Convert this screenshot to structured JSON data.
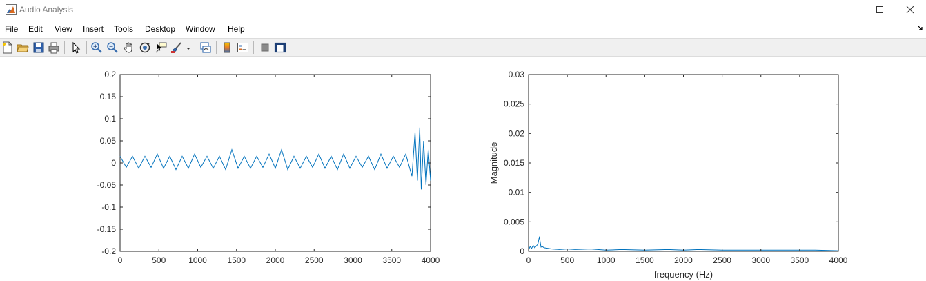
{
  "window": {
    "title": "Audio Analysis",
    "icon": "matlab-figure-icon",
    "controls": [
      "minimize-icon",
      "maximize-icon",
      "close-icon"
    ]
  },
  "menu": {
    "items": [
      "File",
      "Edit",
      "View",
      "Insert",
      "Tools",
      "Desktop",
      "Window",
      "Help"
    ]
  },
  "toolbar": {
    "tools": [
      "new-figure-icon",
      "open-file-icon",
      "save-icon",
      "print-icon",
      "select-pointer-icon",
      "zoom-in-icon",
      "zoom-out-icon",
      "pan-hand-icon",
      "rotate-3d-icon",
      "data-cursor-icon",
      "brush-icon",
      "brush-dropdown-icon",
      "link-plot-icon",
      "colorbar-icon",
      "legend-icon",
      "hide-plot-tools-icon",
      "show-plot-tools-icon"
    ]
  },
  "chart_data": [
    {
      "type": "line",
      "title": "",
      "xlabel": "",
      "ylabel": "",
      "xlim": [
        0,
        4000
      ],
      "ylim": [
        -0.2,
        0.2
      ],
      "xticks": [
        "0",
        "500",
        "1000",
        "1500",
        "2000",
        "2500",
        "3000",
        "3500",
        "4000"
      ],
      "yticks": [
        "0.2",
        "0.15",
        "0.1",
        "0.05",
        "0",
        "-0.05",
        "-0.1",
        "-0.15",
        "-0.2"
      ],
      "grid": false,
      "color": "#0072bd",
      "series": [
        {
          "x": [
            0,
            80,
            160,
            240,
            320,
            400,
            480,
            560,
            640,
            720,
            800,
            880,
            960,
            1040,
            1120,
            1200,
            1280,
            1360,
            1440,
            1520,
            1600,
            1680,
            1760,
            1840,
            1920,
            2000,
            2080,
            2160,
            2240,
            2320,
            2400,
            2480,
            2560,
            2640,
            2720,
            2800,
            2880,
            2960,
            3040,
            3120,
            3200,
            3280,
            3360,
            3440,
            3520,
            3600,
            3680,
            3760,
            3800,
            3830,
            3860,
            3880,
            3910,
            3940,
            3970,
            4000
          ],
          "values": [
            0.015,
            -0.01,
            0.015,
            -0.012,
            0.015,
            -0.01,
            0.02,
            -0.012,
            0.015,
            -0.015,
            0.015,
            -0.012,
            0.02,
            -0.01,
            0.015,
            -0.012,
            0.015,
            -0.015,
            0.03,
            -0.012,
            0.015,
            -0.012,
            0.015,
            -0.01,
            0.02,
            -0.012,
            0.03,
            -0.015,
            0.015,
            -0.012,
            0.015,
            -0.01,
            0.02,
            -0.012,
            0.015,
            -0.015,
            0.02,
            -0.012,
            0.015,
            -0.01,
            0.015,
            -0.015,
            0.02,
            -0.012,
            0.015,
            -0.01,
            0.02,
            -0.03,
            0.07,
            -0.04,
            0.08,
            -0.06,
            0.05,
            -0.05,
            0.03,
            -0.04
          ]
        }
      ]
    },
    {
      "type": "line",
      "title": "",
      "xlabel": "frequency (Hz)",
      "ylabel": "Magnitude",
      "xlim": [
        0,
        4000
      ],
      "ylim": [
        0,
        0.03
      ],
      "xticks": [
        "0",
        "500",
        "1000",
        "1500",
        "2000",
        "2500",
        "3000",
        "3500",
        "4000"
      ],
      "yticks": [
        "0.03",
        "0.025",
        "0.02",
        "0.015",
        "0.01",
        "0.005",
        "0"
      ],
      "grid": false,
      "color": "#0072bd",
      "series": [
        {
          "x": [
            0,
            20,
            40,
            60,
            80,
            100,
            120,
            140,
            160,
            180,
            200,
            250,
            300,
            400,
            500,
            600,
            800,
            1000,
            1200,
            1500,
            1800,
            2000,
            2200,
            2500,
            2800,
            3000,
            3300,
            3500,
            3700,
            4000
          ],
          "values": [
            0.0002,
            0.0008,
            0.0005,
            0.001,
            0.0006,
            0.0009,
            0.0012,
            0.0025,
            0.0007,
            0.0008,
            0.0006,
            0.0005,
            0.0004,
            0.0003,
            0.0004,
            0.0003,
            0.0004,
            0.0002,
            0.0003,
            0.0002,
            0.0003,
            0.0002,
            0.0003,
            0.0002,
            0.0002,
            0.0002,
            0.0002,
            0.0002,
            0.0002,
            0.0001
          ]
        }
      ]
    }
  ]
}
